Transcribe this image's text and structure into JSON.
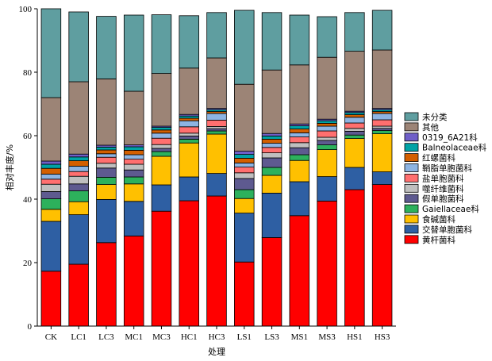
{
  "chart_data": {
    "type": "bar",
    "stacked": true,
    "xlabel": "处理",
    "ylabel": "相对丰度/%",
    "ylim": [
      0,
      100
    ],
    "yticks": [
      0,
      20,
      40,
      60,
      80,
      100
    ],
    "legend_position": "right",
    "categories": [
      "CK",
      "LC1",
      "LC3",
      "MC1",
      "MC3",
      "HC1",
      "HC3",
      "LS1",
      "LS3",
      "MS1",
      "MS3",
      "HS1",
      "HS3"
    ],
    "series": [
      {
        "name": "黄杆菌科",
        "color": "#ff0000",
        "values": [
          17.3,
          19.5,
          26.3,
          28.4,
          36.2,
          39.5,
          41.0,
          20.2,
          27.9,
          34.8,
          39.4,
          43.0,
          44.6
        ]
      },
      {
        "name": "交替单胞菌科",
        "color": "#2e5fa3",
        "values": [
          15.7,
          15.6,
          13.6,
          10.9,
          8.3,
          7.5,
          7.1,
          15.4,
          14.0,
          10.7,
          7.7,
          7.0,
          4.0
        ]
      },
      {
        "name": "食碱菌科",
        "color": "#ffc000",
        "values": [
          3.8,
          4.1,
          4.7,
          5.5,
          9.0,
          10.7,
          12.4,
          4.6,
          5.6,
          6.7,
          8.5,
          9.1,
          12.0
        ]
      },
      {
        "name": "Gaiellaceae科",
        "color": "#2db15c",
        "values": [
          3.3,
          3.4,
          2.3,
          2.2,
          1.5,
          1.2,
          1.0,
          2.8,
          2.5,
          1.8,
          1.5,
          1.1,
          1.0
        ]
      },
      {
        "name": "假单胞菌科",
        "color": "#5e5a90",
        "values": [
          2.3,
          2.2,
          2.9,
          2.2,
          1.0,
          1.0,
          0.7,
          3.5,
          3.0,
          2.2,
          1.4,
          1.2,
          0.7
        ]
      },
      {
        "name": "噬纤维菌科",
        "color": "#bfbfbf",
        "values": [
          2.3,
          2.4,
          1.5,
          1.8,
          1.2,
          0.9,
          0.7,
          1.8,
          1.6,
          1.6,
          1.0,
          0.9,
          0.7
        ]
      },
      {
        "name": "盐单胞菌科",
        "color": "#ff6f6f",
        "values": [
          1.6,
          1.5,
          1.9,
          1.6,
          2.0,
          2.0,
          2.0,
          1.8,
          1.7,
          1.8,
          2.0,
          1.7,
          2.0
        ]
      },
      {
        "name": "鞘脂单胞菌科",
        "color": "#8db4e2",
        "values": [
          1.6,
          1.7,
          1.1,
          1.4,
          1.6,
          1.9,
          2.1,
          1.3,
          1.3,
          1.3,
          1.5,
          1.8,
          2.0
        ]
      },
      {
        "name": "红螺菌科",
        "color": "#d35f00",
        "values": [
          1.8,
          1.7,
          1.2,
          1.4,
          1.0,
          0.8,
          0.6,
          1.5,
          1.3,
          1.2,
          0.9,
          0.8,
          0.6
        ]
      },
      {
        "name": "Balneolaceae科",
        "color": "#00a3a6",
        "values": [
          1.3,
          1.2,
          0.9,
          1.1,
          0.8,
          0.7,
          0.6,
          1.2,
          1.0,
          1.0,
          0.8,
          0.7,
          0.6
        ]
      },
      {
        "name": "0319_6A21科",
        "color": "#6f5fc8",
        "values": [
          1.0,
          0.9,
          0.6,
          0.6,
          0.4,
          0.5,
          0.4,
          1.0,
          0.8,
          0.6,
          0.5,
          0.4,
          0.4
        ]
      },
      {
        "name": "其他",
        "color": "#9c8476",
        "values": [
          20.0,
          22.8,
          20.9,
          16.9,
          16.6,
          14.6,
          15.9,
          21.1,
          20.0,
          18.6,
          19.5,
          18.9,
          18.4
        ]
      },
      {
        "name": "未分类",
        "color": "#5f9ea0",
        "values": [
          28.0,
          22.0,
          19.7,
          24.0,
          18.5,
          16.5,
          14.3,
          23.3,
          18.1,
          15.7,
          12.8,
          12.2,
          12.5
        ]
      }
    ]
  }
}
